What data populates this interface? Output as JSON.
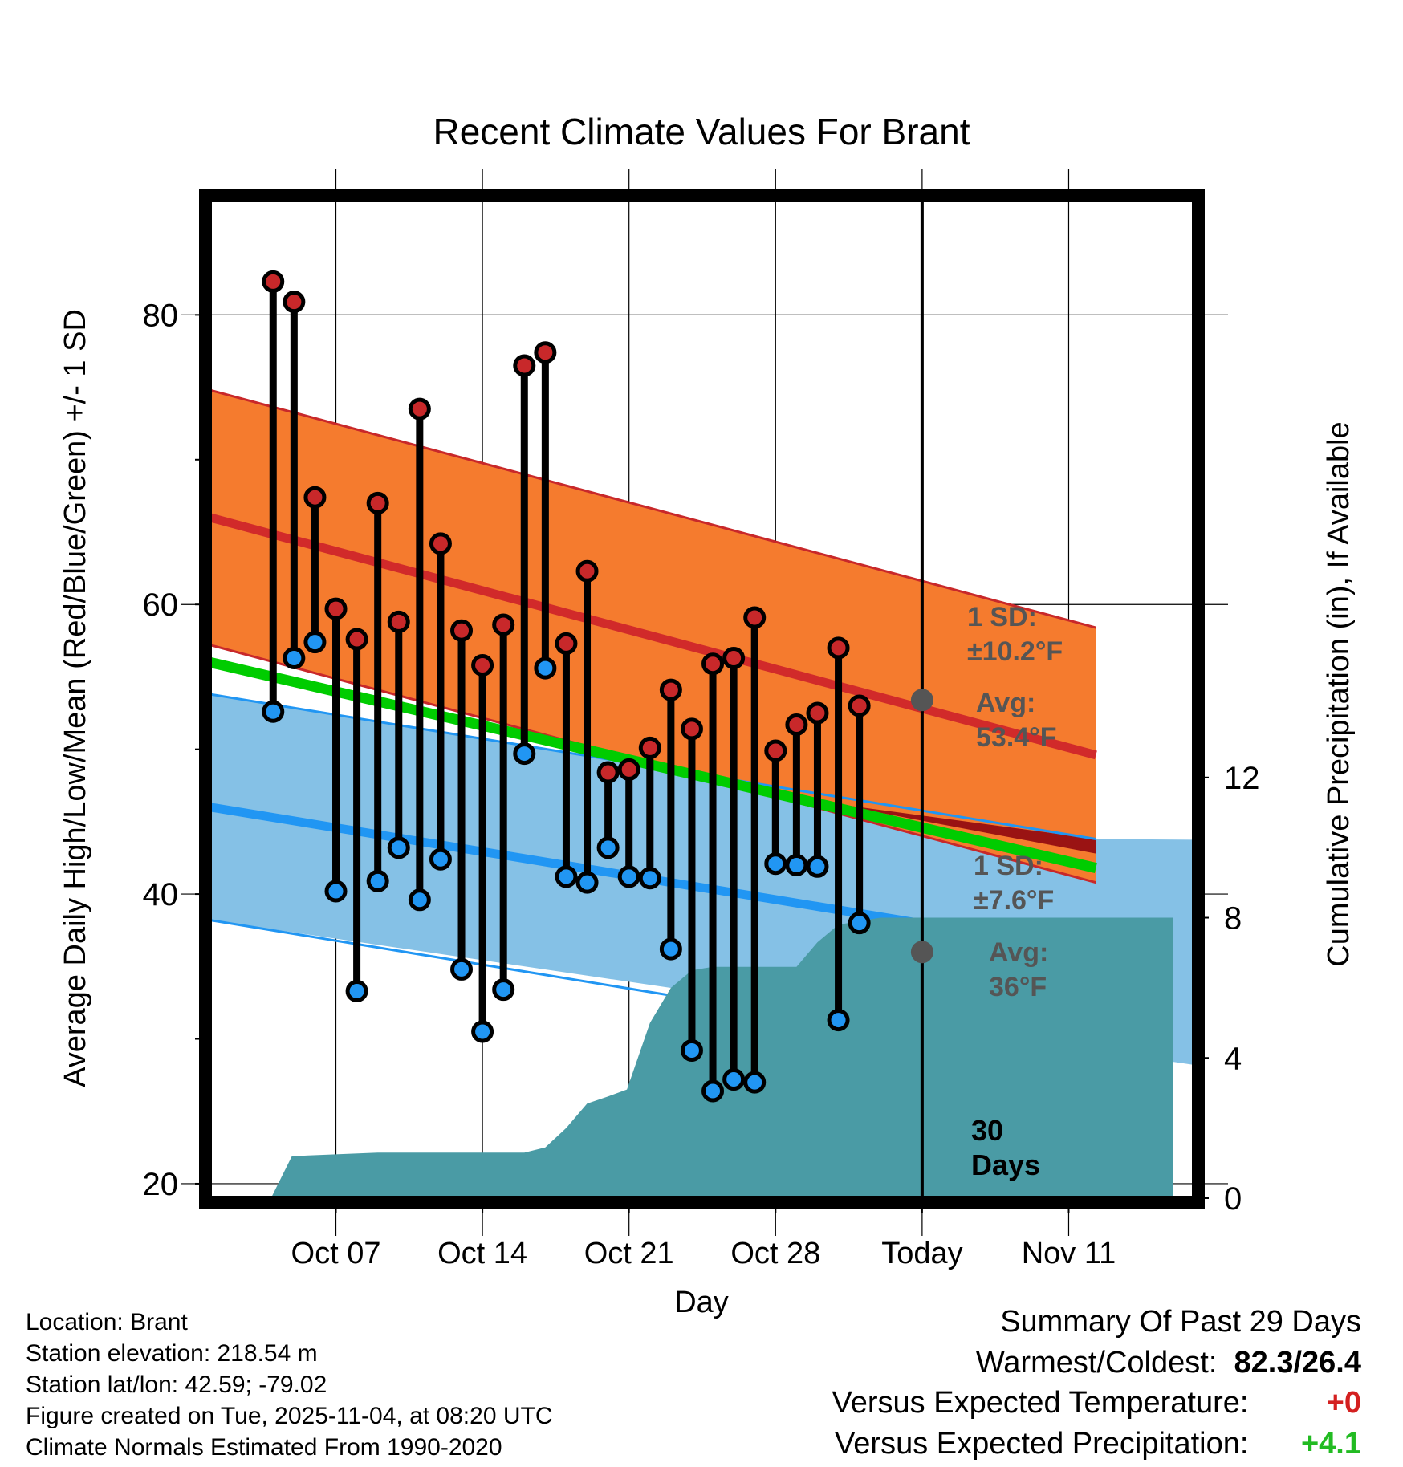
{
  "chart_data": {
    "type": "climate-summary",
    "title": "Recent Climate Values For Brant",
    "xlabel": "Day",
    "ylabel_left": "Average Daily High/Low/Mean (Red/Blue/Green) +/- 1 SD",
    "ylabel_right": "Cumulative Precipitation (in), If Available",
    "x_range_days": [
      -1,
      46
    ],
    "ylim_left": [
      19,
      88
    ],
    "ylim_right": [
      0,
      28.5
    ],
    "x_ticks": [
      {
        "day": 5,
        "label": "Oct 07"
      },
      {
        "day": 12,
        "label": "Oct 14"
      },
      {
        "day": 19,
        "label": "Oct 21"
      },
      {
        "day": 26,
        "label": "Oct 28"
      },
      {
        "day": 33,
        "label": "Today"
      },
      {
        "day": 40,
        "label": "Nov 11"
      }
    ],
    "y_ticks_left": [
      20,
      40,
      60,
      80
    ],
    "y_ticks_right": [
      0,
      4,
      8,
      12
    ],
    "normals": {
      "high_mean": {
        "start": 66.0,
        "end": 49.6
      },
      "high_sd": 8.8,
      "low_mean": {
        "start": 46.0,
        "end": 36.0
      },
      "low_sd": 7.8,
      "mean": {
        "start": 56.0,
        "end": 41.8
      },
      "x_start": -1,
      "x_end": 41.3
    },
    "annotations": {
      "high_sd_label": "1 SD:",
      "high_sd_value": "±10.2°F",
      "high_avg_label": "Avg:",
      "high_avg_value": "53.4°F",
      "low_sd_label": "1 SD:",
      "low_sd_value": "±7.6°F",
      "low_avg_label": "Avg:",
      "low_avg_value": "36°F",
      "today_high": 53.4,
      "today_low": 36,
      "days_label_1": "30",
      "days_label_2": "Days"
    },
    "series": [
      {
        "name": "Daily High",
        "color": "#c8282a",
        "values": [
          82.3,
          80.9,
          67.4,
          59.7,
          57.6,
          67.0,
          58.8,
          73.5,
          64.2,
          58.2,
          55.8,
          58.6,
          76.5,
          77.4,
          57.3,
          62.3,
          48.4,
          48.6,
          50.1,
          54.1,
          51.4,
          55.9,
          56.3,
          59.1,
          49.9,
          51.7,
          52.5,
          57.0,
          53.0
        ]
      },
      {
        "name": "Daily Low",
        "color": "#2196f3",
        "values": [
          52.6,
          56.3,
          57.4,
          40.2,
          33.3,
          40.9,
          43.2,
          39.6,
          42.4,
          34.8,
          30.5,
          33.4,
          49.7,
          55.6,
          41.2,
          40.8,
          43.2,
          41.2,
          41.1,
          36.2,
          29.2,
          26.4,
          27.2,
          27.0,
          42.1,
          42.0,
          41.9,
          31.3,
          38.0
        ]
      }
    ],
    "precip": {
      "name": "Cumulative Precipitation",
      "color": "#4a9ba5",
      "x": [
        1.9,
        2.9,
        7.0,
        14.0,
        15.0,
        16.0,
        17.0,
        18.0,
        18.9,
        20.0,
        21.0,
        22.0,
        23.0,
        27.0,
        28.0,
        29.0,
        30.0,
        31.0,
        45.0
      ],
      "values": [
        0.0,
        1.2,
        1.3,
        1.3,
        1.45,
        2.0,
        2.7,
        2.9,
        3.1,
        5.0,
        6.0,
        6.5,
        6.6,
        6.6,
        7.3,
        7.8,
        7.9,
        8.0,
        8.0
      ]
    }
  },
  "info": {
    "location": "Location: Brant",
    "elevation": "Station elevation: 218.54 m",
    "latlon": "Station lat/lon: 42.59; -79.02",
    "created": "Figure created on Tue, 2025-11-04, at 08:20 UTC",
    "normals": "Climate Normals Estimated From 1990-2020"
  },
  "summary": {
    "title": "Summary Of Past 29 Days",
    "warm_cold_label": "Warmest/Coldest:",
    "warm_cold_value": "82.3/26.4",
    "temp_label": "Versus Expected Temperature:",
    "temp_value": "+0",
    "temp_color": "#d42020",
    "precip_label": "Versus Expected Precipitation:",
    "precip_value": "+4.1",
    "precip_color": "#22bb22"
  }
}
